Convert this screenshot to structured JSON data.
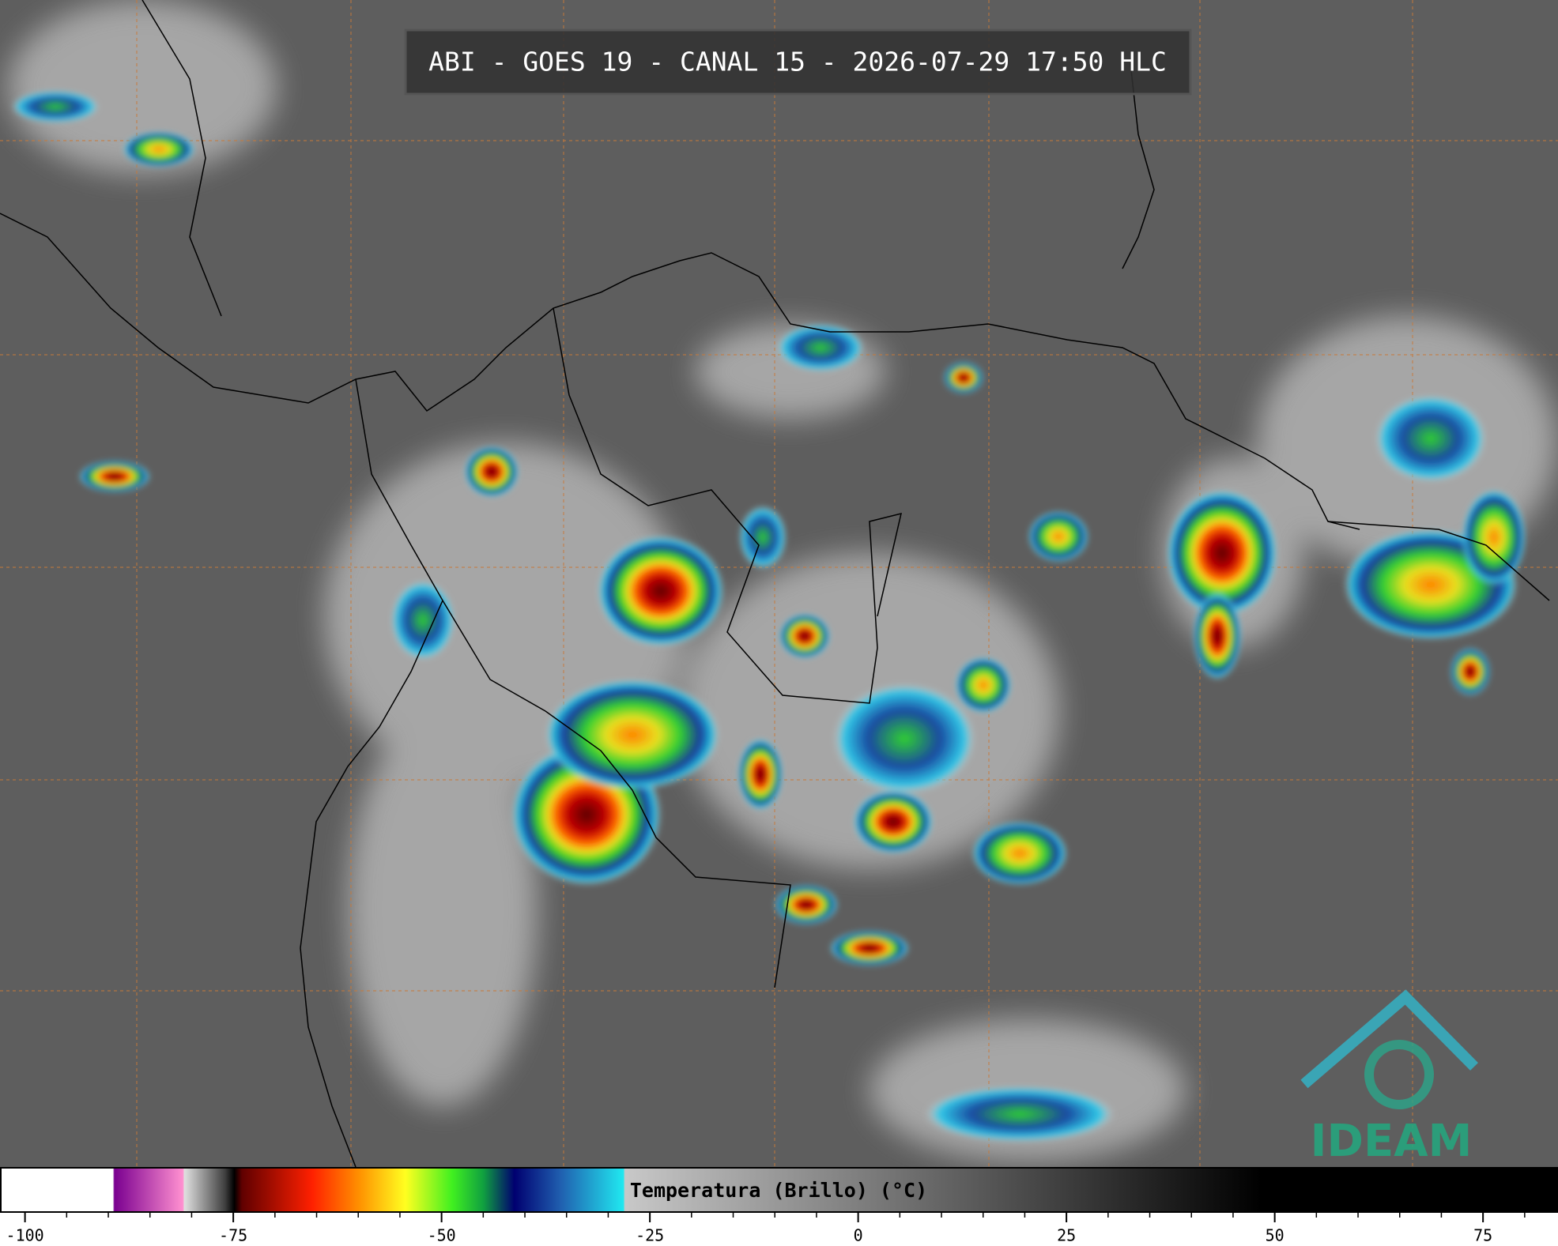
{
  "header": {
    "title": "ABI - GOES 19 - CANAL 15 - 2026-07-29 17:50 HLC"
  },
  "colorbar": {
    "label": "Temperatura (Brillo) (°C)",
    "lim": [
      -103,
      84
    ],
    "ticks": [
      -100,
      -75,
      -50,
      -25,
      0,
      25,
      50,
      75
    ],
    "minor_ticks": [
      -95,
      -90,
      -85,
      -80,
      -70,
      -65,
      -60,
      -55,
      -45,
      -40,
      -35,
      -30,
      -20,
      -15,
      -10,
      -5,
      5,
      10,
      15,
      20,
      30,
      35,
      40,
      45,
      55,
      60,
      65,
      70,
      80
    ]
  },
  "logo": "IDEAM"
}
